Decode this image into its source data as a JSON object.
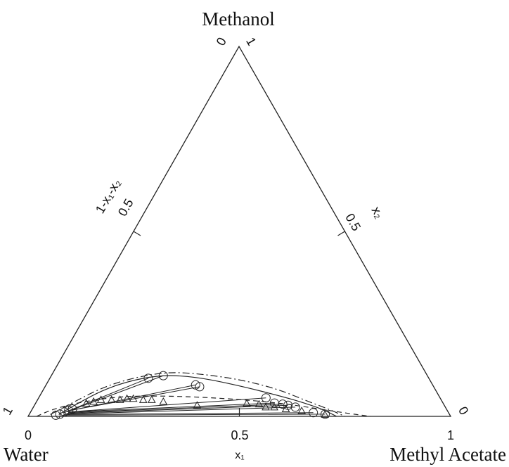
{
  "chart_data": {
    "type": "ternary-scatter",
    "vertices": {
      "top": "Methanol",
      "left": "Water",
      "right": "Methyl Acetate"
    },
    "axes": {
      "bottom": {
        "label": "x₁",
        "ticks": [
          "0",
          "0.5",
          "1"
        ]
      },
      "right": {
        "label": "x₂",
        "tick_mid": "0.5",
        "end_top": "1",
        "end_bottom": "0"
      },
      "left": {
        "label": "1-x₁-x₂",
        "tick_mid": "0.5",
        "end_top": "0",
        "end_bottom": "1"
      }
    },
    "series": [
      {
        "marker": "circle",
        "points": [
          [
            0.233,
            0.103
          ],
          [
            0.265,
            0.11
          ],
          [
            0.354,
            0.085
          ],
          [
            0.366,
            0.08
          ],
          [
            0.538,
            0.05
          ],
          [
            0.565,
            0.036
          ],
          [
            0.586,
            0.033
          ],
          [
            0.6,
            0.03
          ],
          [
            0.62,
            0.025
          ],
          [
            0.67,
            0.01
          ],
          [
            0.7,
            0.006
          ],
          [
            0.064,
            0.003
          ],
          [
            0.072,
            0.006
          ],
          [
            0.08,
            0.012
          ],
          [
            0.088,
            0.016
          ],
          [
            0.095,
            0.02
          ]
        ]
      },
      {
        "marker": "triangle",
        "points": [
          [
            0.12,
            0.035
          ],
          [
            0.135,
            0.04
          ],
          [
            0.15,
            0.045
          ],
          [
            0.175,
            0.045
          ],
          [
            0.195,
            0.045
          ],
          [
            0.21,
            0.048
          ],
          [
            0.225,
            0.048
          ],
          [
            0.25,
            0.045
          ],
          [
            0.27,
            0.045
          ],
          [
            0.3,
            0.04
          ],
          [
            0.385,
            0.03
          ],
          [
            0.5,
            0.035
          ],
          [
            0.53,
            0.033
          ],
          [
            0.55,
            0.025
          ],
          [
            0.57,
            0.025
          ],
          [
            0.6,
            0.02
          ],
          [
            0.64,
            0.015
          ],
          [
            0.7,
            0.005
          ]
        ]
      }
    ],
    "tie_lines": [
      [
        [
          0.08,
          0.01
        ],
        [
          0.233,
          0.103
        ]
      ],
      [
        [
          0.085,
          0.012
        ],
        [
          0.265,
          0.11
        ]
      ],
      [
        [
          0.085,
          0.014
        ],
        [
          0.354,
          0.085
        ]
      ],
      [
        [
          0.087,
          0.015
        ],
        [
          0.366,
          0.08
        ]
      ],
      [
        [
          0.09,
          0.012
        ],
        [
          0.538,
          0.05
        ]
      ],
      [
        [
          0.09,
          0.012
        ],
        [
          0.565,
          0.036
        ]
      ],
      [
        [
          0.09,
          0.01
        ],
        [
          0.586,
          0.033
        ]
      ],
      [
        [
          0.088,
          0.008
        ],
        [
          0.6,
          0.03
        ]
      ],
      [
        [
          0.085,
          0.006
        ],
        [
          0.62,
          0.025
        ]
      ],
      [
        [
          0.082,
          0.005
        ],
        [
          0.67,
          0.01
        ]
      ],
      [
        [
          0.08,
          0.003
        ],
        [
          0.7,
          0.006
        ]
      ]
    ],
    "curves": [
      {
        "style": "solid",
        "points": [
          [
            0.07,
            0.005
          ],
          [
            0.1,
            0.035
          ],
          [
            0.14,
            0.07
          ],
          [
            0.19,
            0.095
          ],
          [
            0.25,
            0.11
          ],
          [
            0.31,
            0.11
          ],
          [
            0.38,
            0.1
          ],
          [
            0.47,
            0.08
          ],
          [
            0.57,
            0.055
          ],
          [
            0.64,
            0.035
          ],
          [
            0.69,
            0.018
          ],
          [
            0.73,
            0.0
          ]
        ]
      },
      {
        "style": "dash-dot",
        "points": [
          [
            0.05,
            0.005
          ],
          [
            0.09,
            0.04
          ],
          [
            0.14,
            0.08
          ],
          [
            0.2,
            0.105
          ],
          [
            0.27,
            0.12
          ],
          [
            0.35,
            0.115
          ],
          [
            0.45,
            0.1
          ],
          [
            0.55,
            0.075
          ],
          [
            0.63,
            0.045
          ],
          [
            0.7,
            0.02
          ],
          [
            0.75,
            0.0
          ]
        ]
      },
      {
        "style": "dashed",
        "points": [
          [
            0.02,
            0.0
          ],
          [
            0.05,
            0.02
          ],
          [
            0.11,
            0.04
          ],
          [
            0.2,
            0.055
          ],
          [
            0.32,
            0.055
          ],
          [
            0.45,
            0.048
          ],
          [
            0.56,
            0.038
          ],
          [
            0.65,
            0.025
          ],
          [
            0.74,
            0.01
          ],
          [
            0.81,
            0.0
          ]
        ]
      }
    ]
  }
}
